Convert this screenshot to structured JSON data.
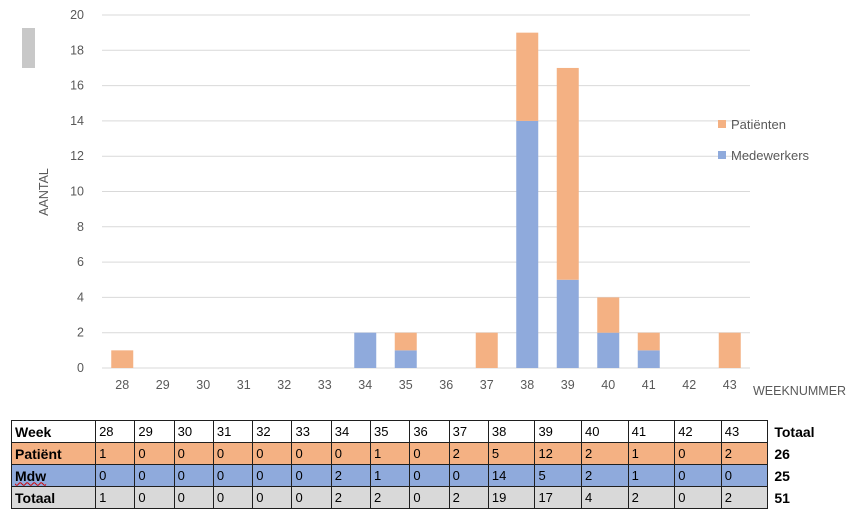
{
  "chart_data": {
    "type": "bar",
    "stacked": true,
    "categories": [
      "28",
      "29",
      "30",
      "31",
      "32",
      "33",
      "34",
      "35",
      "36",
      "37",
      "38",
      "39",
      "40",
      "41",
      "42",
      "43"
    ],
    "series": [
      {
        "name": "Medewerkers",
        "color": "#8faadc",
        "values": [
          0,
          0,
          0,
          0,
          0,
          0,
          2,
          1,
          0,
          0,
          14,
          5,
          2,
          1,
          0,
          0
        ]
      },
      {
        "name": "Patiënten",
        "color": "#f4b183",
        "values": [
          1,
          0,
          0,
          0,
          0,
          0,
          0,
          1,
          0,
          2,
          5,
          12,
          2,
          1,
          0,
          2
        ]
      }
    ],
    "xlabel": "WEEKNUMMER",
    "ylabel": "AANTAL",
    "ylim": [
      0,
      20
    ],
    "yticks": [
      0,
      2,
      4,
      6,
      8,
      10,
      12,
      14,
      16,
      18,
      20
    ],
    "grid": true,
    "legend_position": "right",
    "legend_order": [
      "Patiënten",
      "Medewerkers"
    ]
  },
  "table": {
    "header": {
      "label": "Week",
      "cells": [
        "28",
        "29",
        "30",
        "31",
        "32",
        "33",
        "34",
        "35",
        "36",
        "37",
        "38",
        "39",
        "40",
        "41",
        "42",
        "43"
      ],
      "total": "Totaal"
    },
    "rows": [
      {
        "label": "Patiënt",
        "cells": [
          "1",
          "0",
          "0",
          "0",
          "0",
          "0",
          "0",
          "1",
          "0",
          "2",
          "5",
          "12",
          "2",
          "1",
          "0",
          "2"
        ],
        "total": "26"
      },
      {
        "label": "Mdw",
        "cells": [
          "0",
          "0",
          "0",
          "0",
          "0",
          "0",
          "2",
          "1",
          "0",
          "0",
          "14",
          "5",
          "2",
          "1",
          "0",
          "0"
        ],
        "total": "25"
      },
      {
        "label": "Totaal",
        "cells": [
          "1",
          "0",
          "0",
          "0",
          "0",
          "0",
          "2",
          "2",
          "0",
          "2",
          "19",
          "17",
          "4",
          "2",
          "0",
          "2"
        ],
        "total": "51"
      }
    ]
  },
  "colors": {
    "patient": "#f4b183",
    "mdw": "#8faadc",
    "totaal": "#d9d9d9",
    "grid": "#d9d9d9"
  }
}
